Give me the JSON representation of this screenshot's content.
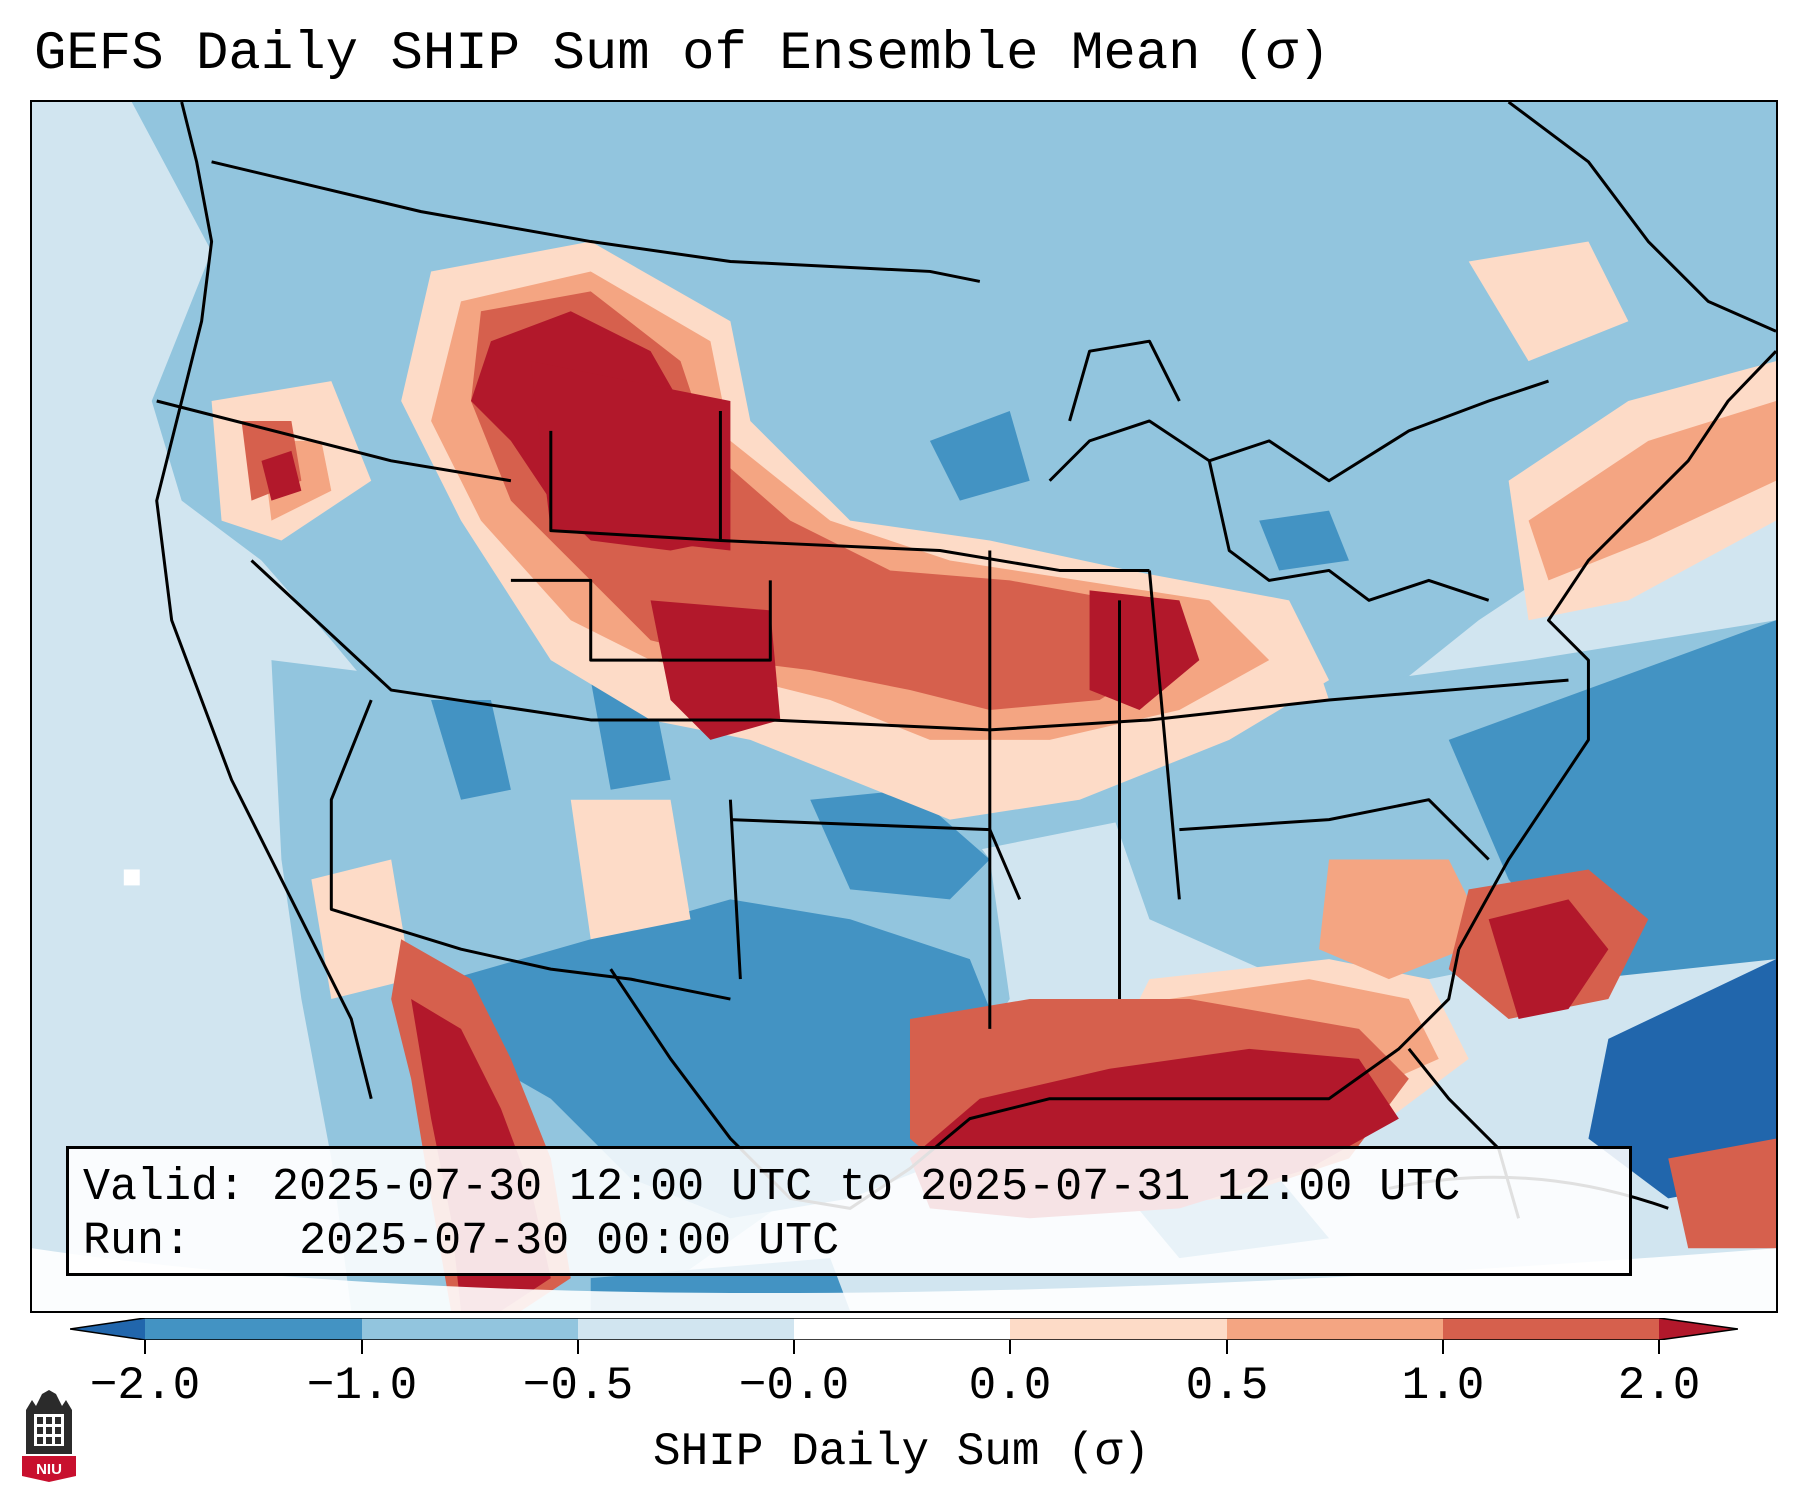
{
  "title": "GEFS Daily SHIP Sum of Ensemble Mean (σ)",
  "info": {
    "valid_label": "Valid:",
    "valid_value": "2025-07-30 12:00 UTC to 2025-07-31 12:00 UTC",
    "run_label": "Run:",
    "run_value": "2025-07-30 00:00 UTC"
  },
  "colorbar": {
    "title": "SHIP Daily Sum (σ)",
    "tick_labels": [
      "−2.0",
      "−1.0",
      "−0.5",
      "−0.0",
      "0.0",
      "0.5",
      "1.0",
      "2.0"
    ],
    "colors": [
      "#2166ac",
      "#4393c3",
      "#92c5de",
      "#d1e5f0",
      "#ffffff",
      "#fddbc7",
      "#f4a582",
      "#d6604d",
      "#b2182b"
    ]
  },
  "logo": {
    "text": "NIU",
    "colors": {
      "tower": "#2b2b2b",
      "badge": "#c8102e"
    }
  }
}
